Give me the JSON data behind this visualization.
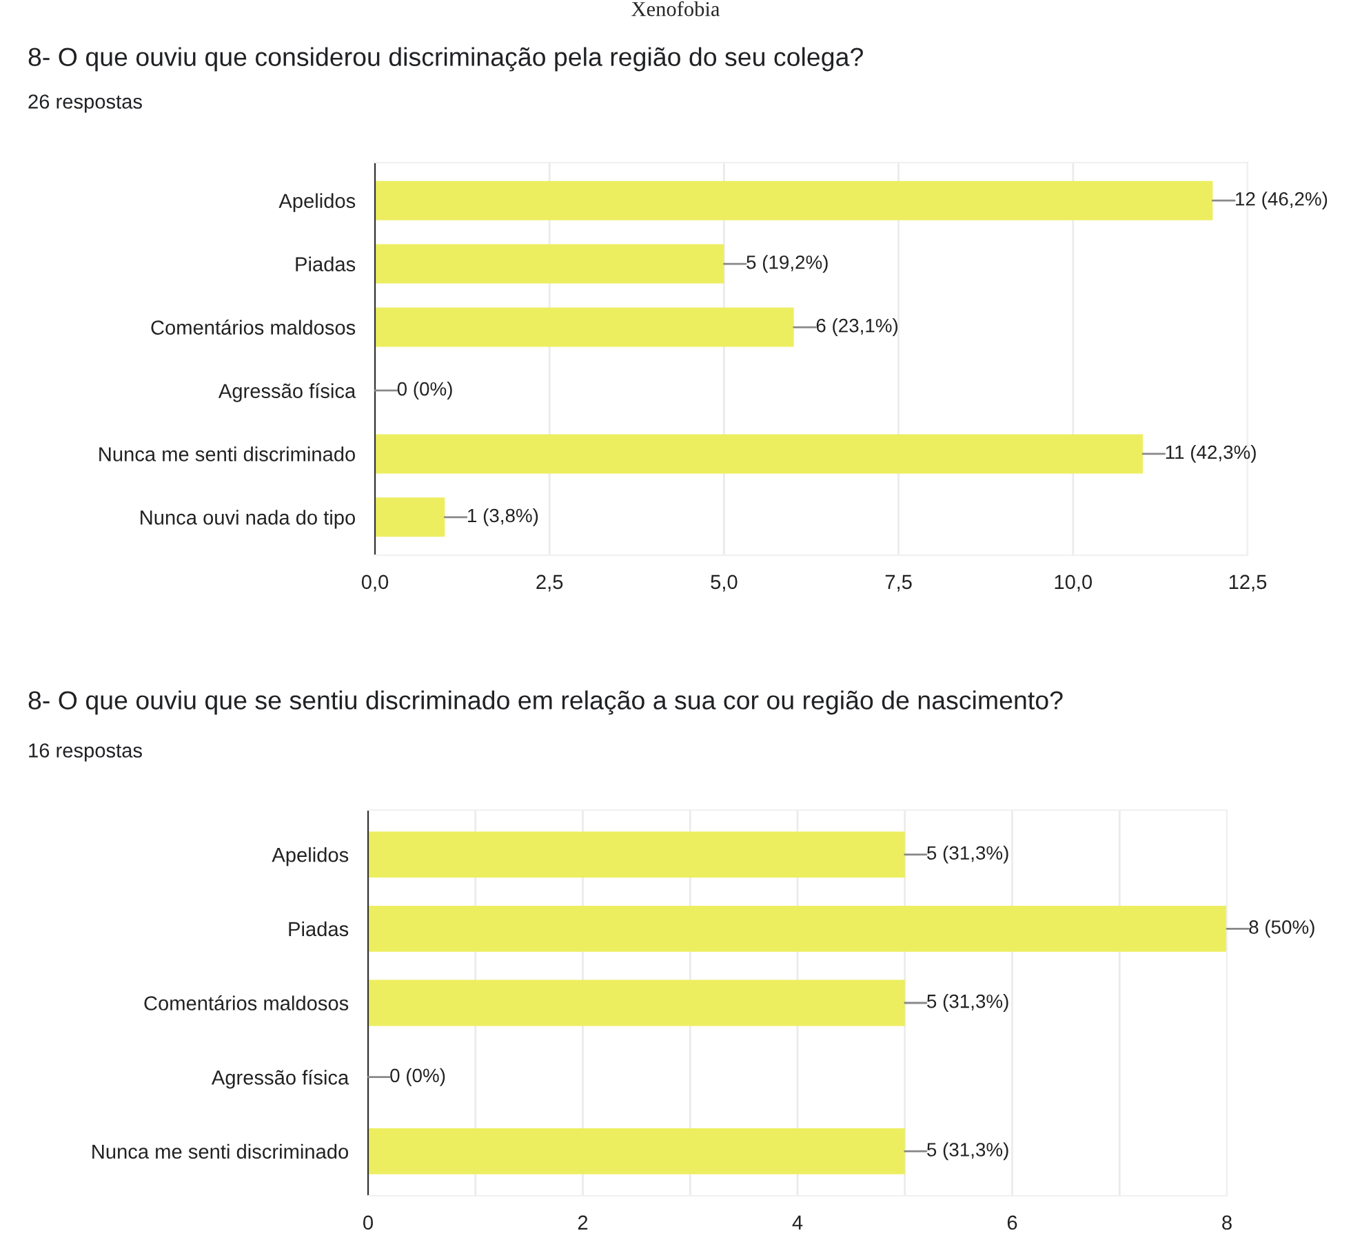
{
  "chart_data": [
    {
      "type": "bar",
      "orientation": "horizontal",
      "title": "8- O que ouviu que considerou discriminação pela região do seu colega?",
      "subtitle": "26 respostas",
      "annotations": [
        "Xenofobia"
      ],
      "categories": [
        "Apelidos",
        "Piadas",
        "Comentários maldosos",
        "Agressão física",
        "Nunca me senti discriminado",
        "Nunca ouvi nada do tipo"
      ],
      "values": [
        12,
        5,
        6,
        0,
        11,
        1
      ],
      "color": "#ecee60",
      "value_labels": [
        "12 (46,2%)",
        "5 (19,2%)",
        "6 (23,1%)",
        "0 (0%)",
        "11 (42,3%)",
        "1 (3,8%)"
      ],
      "xlim": [
        0,
        12.5
      ],
      "xticks": [
        {
          "value": 0,
          "label": "0,0"
        },
        {
          "value": 2.5,
          "label": "2,5"
        },
        {
          "value": 5,
          "label": "5,0"
        },
        {
          "value": 7.5,
          "label": "7,5"
        },
        {
          "value": 10,
          "label": "10,0"
        },
        {
          "value": 12.5,
          "label": "12,5"
        }
      ],
      "grid": "x"
    },
    {
      "type": "bar",
      "orientation": "horizontal",
      "title": "8- O que ouviu que se sentiu discriminado em relação a sua cor ou região de nascimento?",
      "subtitle": "16 respostas",
      "categories": [
        "Apelidos",
        "Piadas",
        "Comentários maldosos",
        "Agressão física",
        "Nunca me senti discriminado"
      ],
      "values": [
        5,
        8,
        5,
        0,
        5
      ],
      "color": "#ecee60",
      "value_labels": [
        "5 (31,3%)",
        "8 (50%)",
        "5 (31,3%)",
        "0 (0%)",
        "5 (31,3%)"
      ],
      "xlim": [
        0,
        8
      ],
      "xticks": [
        0,
        {
          "value": 1,
          "label": null
        },
        2,
        {
          "value": 3,
          "label": null
        },
        4,
        {
          "value": 5,
          "label": null
        },
        6,
        {
          "value": 7,
          "label": null
        },
        8
      ],
      "grid": "x"
    }
  ]
}
